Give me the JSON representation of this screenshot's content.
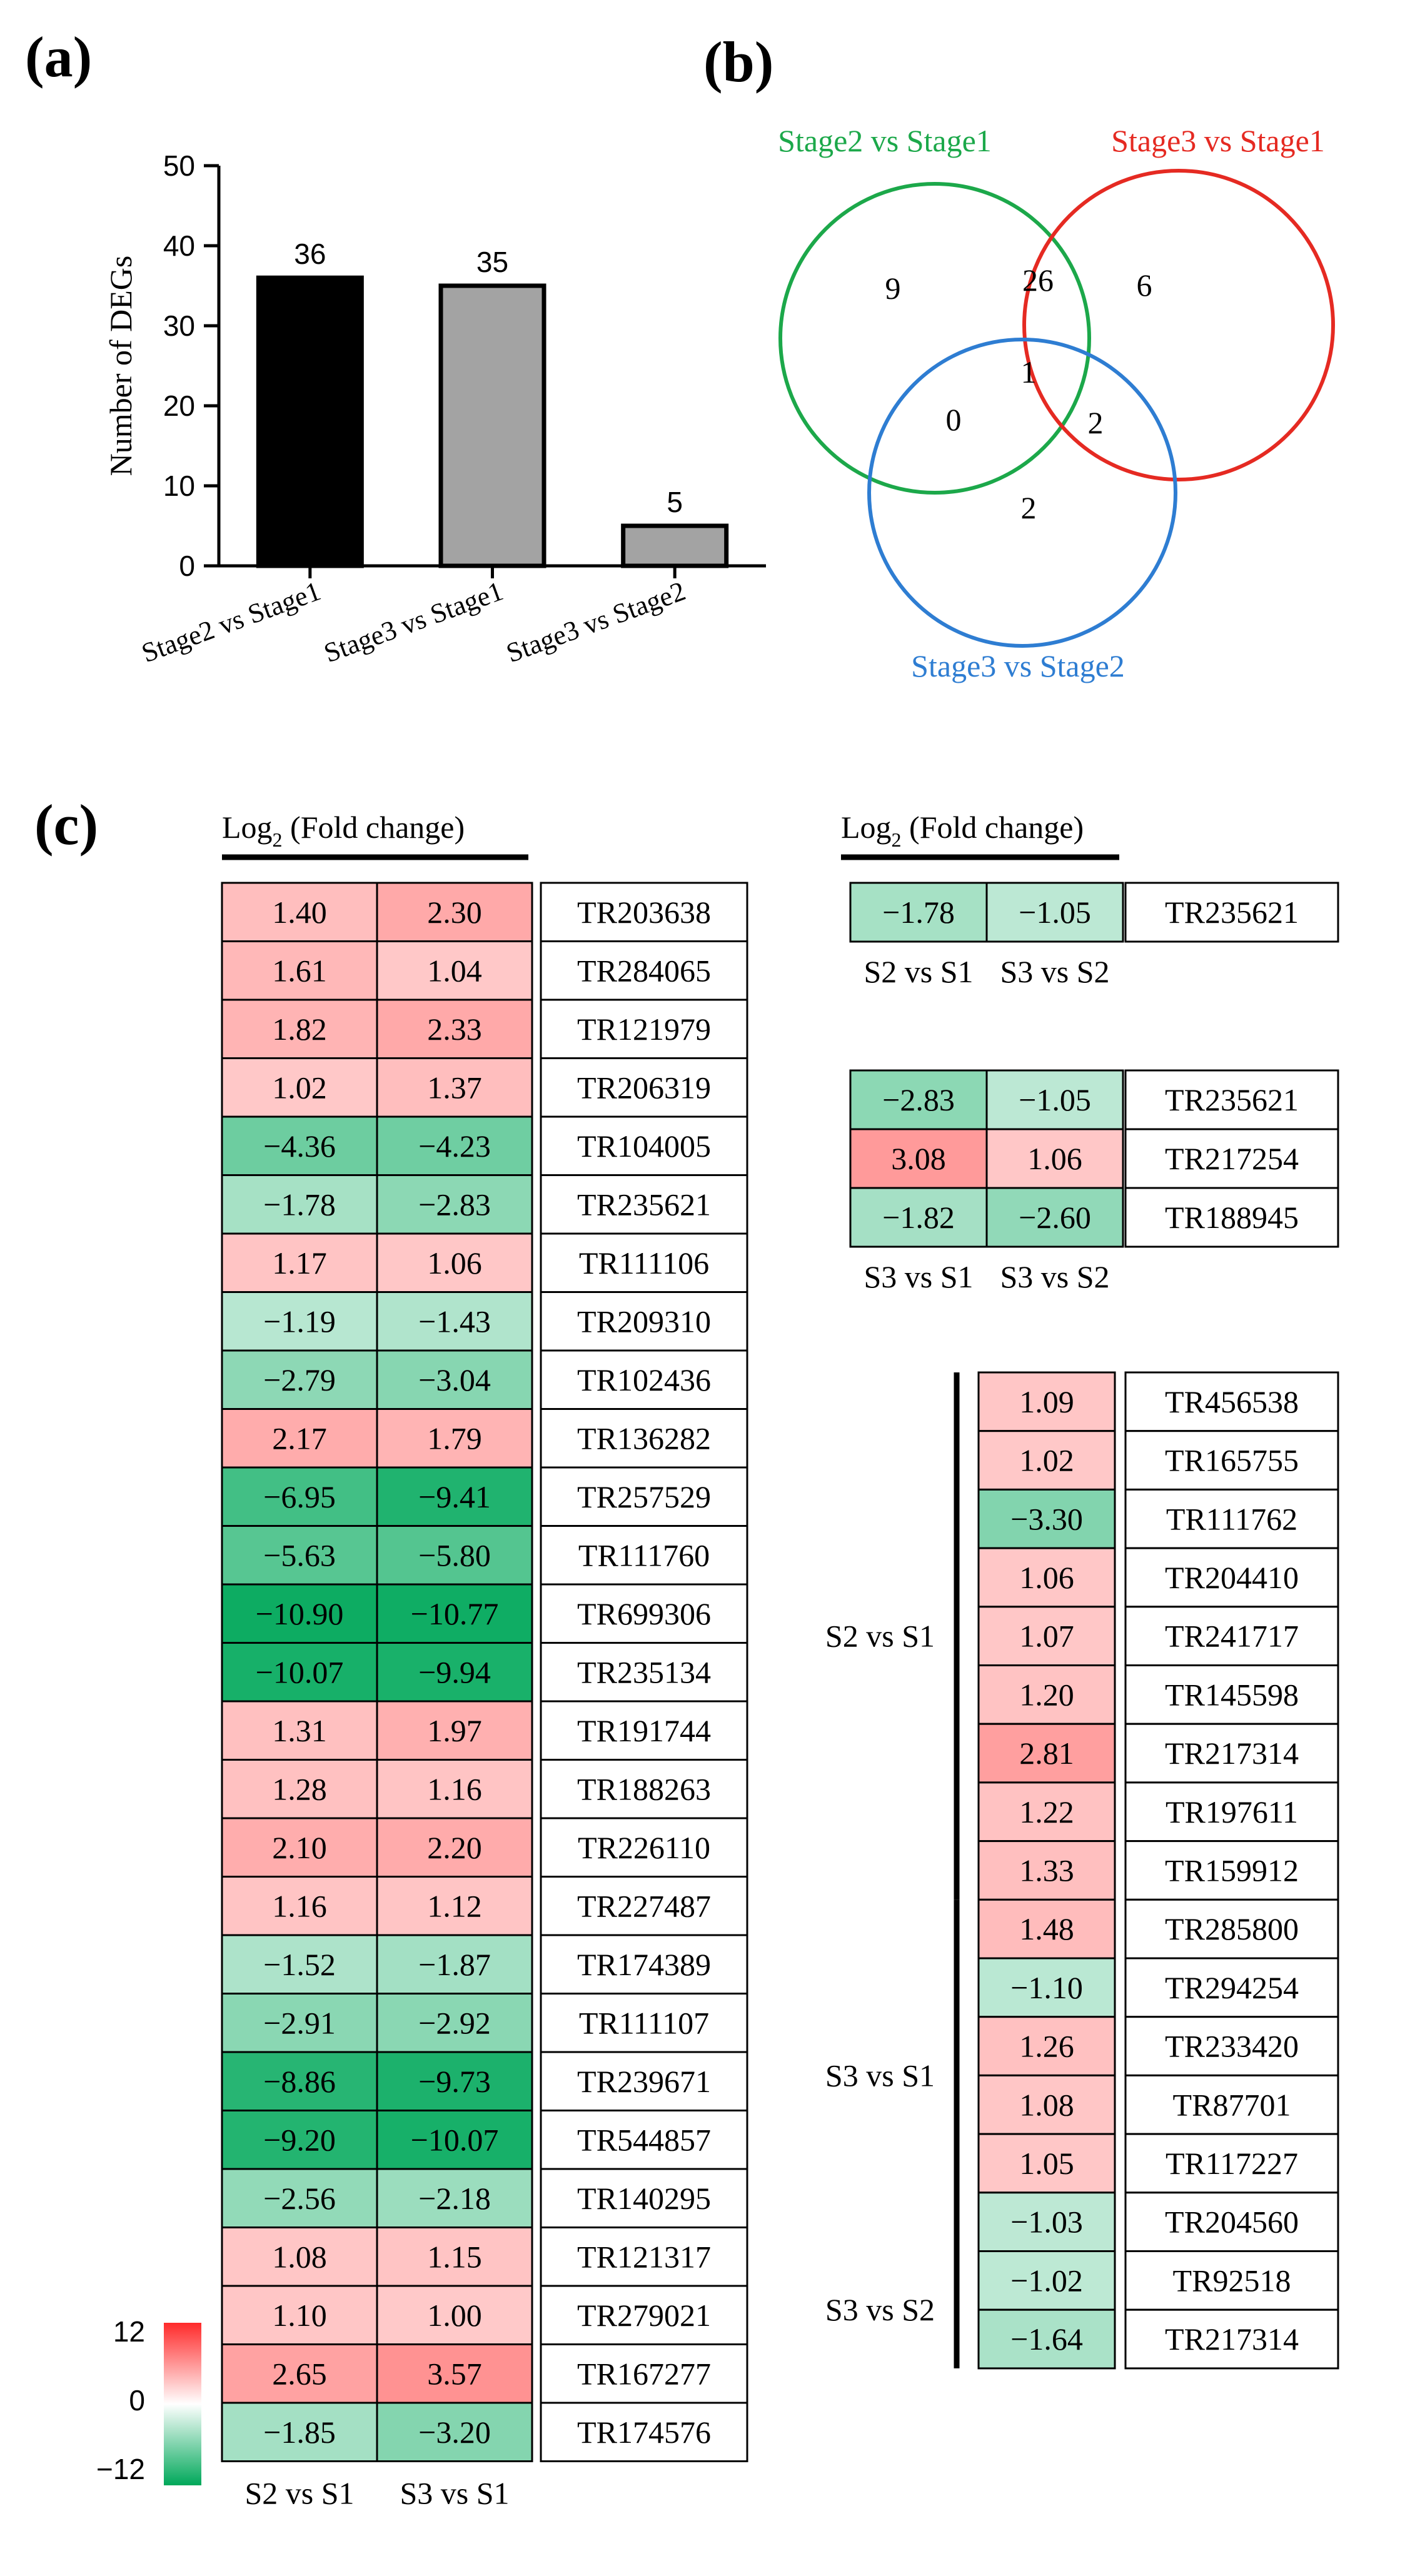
{
  "panel_labels": {
    "a": "(a)",
    "b": "(b)",
    "c": "(c)"
  },
  "chart_data": [
    {
      "panel": "a",
      "type": "bar",
      "ylabel": "Number of DEGs",
      "xlabel": "",
      "ylim": [
        0,
        50
      ],
      "yticks": [
        0,
        10,
        20,
        30,
        40,
        50
      ],
      "categories": [
        "Stage2 vs Stage1",
        "Stage3 vs Stage1",
        "Stage3 vs Stage2"
      ],
      "values": [
        36,
        35,
        5
      ],
      "data_labels": [
        "36",
        "35",
        "5"
      ],
      "colors": [
        "#000000",
        "#a3a3a3",
        "#a3a3a3"
      ],
      "grid": false
    },
    {
      "panel": "b",
      "type": "venn",
      "sets": [
        {
          "label": "Stage2 vs Stage1",
          "color": "#1ca84a"
        },
        {
          "label": "Stage3 vs Stage1",
          "color": "#e52a22"
        },
        {
          "label": "Stage3 vs Stage2",
          "color": "#2e7dd2"
        }
      ],
      "regions": [
        {
          "sets": [
            "Stage2 vs Stage1"
          ],
          "value": 9
        },
        {
          "sets": [
            "Stage2 vs Stage1",
            "Stage3 vs Stage1"
          ],
          "value": 26
        },
        {
          "sets": [
            "Stage3 vs Stage1"
          ],
          "value": 6
        },
        {
          "sets": [
            "Stage2 vs Stage1",
            "Stage3 vs Stage1",
            "Stage3 vs Stage2"
          ],
          "value": 1
        },
        {
          "sets": [
            "Stage2 vs Stage1",
            "Stage3 vs Stage2"
          ],
          "value": 0
        },
        {
          "sets": [
            "Stage3 vs Stage1",
            "Stage3 vs Stage2"
          ],
          "value": 2
        },
        {
          "sets": [
            "Stage3 vs Stage2"
          ],
          "value": 2
        }
      ]
    },
    {
      "panel": "c",
      "type": "heatmap",
      "title": "Log2 (Fold change)",
      "colorscale": {
        "min": -12,
        "max": 12,
        "low_color": "#00a85a",
        "mid_color": "#ffffff",
        "high_color": "#ff2a2a",
        "tick_labels": [
          "12",
          "0",
          "−12"
        ]
      },
      "blocks": [
        {
          "columns": [
            "S2 vs S1",
            "S3 vs S1"
          ],
          "rows": [
            {
              "id": "TR203638",
              "values": [
                1.4,
                2.3
              ],
              "labels": [
                "1.40",
                "2.30"
              ]
            },
            {
              "id": "TR284065",
              "values": [
                1.61,
                1.04
              ],
              "labels": [
                "1.61",
                "1.04"
              ]
            },
            {
              "id": "TR121979",
              "values": [
                1.82,
                2.33
              ],
              "labels": [
                "1.82",
                "2.33"
              ]
            },
            {
              "id": "TR206319",
              "values": [
                1.02,
                1.37
              ],
              "labels": [
                "1.02",
                "1.37"
              ]
            },
            {
              "id": "TR104005",
              "values": [
                -4.36,
                -4.23
              ],
              "labels": [
                "−4.36",
                "−4.23"
              ]
            },
            {
              "id": "TR235621",
              "values": [
                -1.78,
                -2.83
              ],
              "labels": [
                "−1.78",
                "−2.83"
              ]
            },
            {
              "id": "TR111106",
              "values": [
                1.17,
                1.06
              ],
              "labels": [
                "1.17",
                "1.06"
              ]
            },
            {
              "id": "TR209310",
              "values": [
                -1.19,
                -1.43
              ],
              "labels": [
                "−1.19",
                "−1.43"
              ]
            },
            {
              "id": "TR102436",
              "values": [
                -2.79,
                -3.04
              ],
              "labels": [
                "−2.79",
                "−3.04"
              ]
            },
            {
              "id": "TR136282",
              "values": [
                2.17,
                1.79
              ],
              "labels": [
                "2.17",
                "1.79"
              ]
            },
            {
              "id": "TR257529",
              "values": [
                -6.95,
                -9.41
              ],
              "labels": [
                "−6.95",
                "−9.41"
              ]
            },
            {
              "id": "TR111760",
              "values": [
                -5.63,
                -5.8
              ],
              "labels": [
                "−5.63",
                "−5.80"
              ]
            },
            {
              "id": "TR699306",
              "values": [
                -10.9,
                -10.77
              ],
              "labels": [
                "−10.90",
                "−10.77"
              ]
            },
            {
              "id": "TR235134",
              "values": [
                -10.07,
                -9.94
              ],
              "labels": [
                "−10.07",
                "−9.94"
              ]
            },
            {
              "id": "TR191744",
              "values": [
                1.31,
                1.97
              ],
              "labels": [
                "1.31",
                "1.97"
              ]
            },
            {
              "id": "TR188263",
              "values": [
                1.28,
                1.16
              ],
              "labels": [
                "1.28",
                "1.16"
              ]
            },
            {
              "id": "TR226110",
              "values": [
                2.1,
                2.2
              ],
              "labels": [
                "2.10",
                "2.20"
              ]
            },
            {
              "id": "TR227487",
              "values": [
                1.16,
                1.12
              ],
              "labels": [
                "1.16",
                "1.12"
              ]
            },
            {
              "id": "TR174389",
              "values": [
                -1.52,
                -1.87
              ],
              "labels": [
                "−1.52",
                "−1.87"
              ]
            },
            {
              "id": "TR111107",
              "values": [
                -2.91,
                -2.92
              ],
              "labels": [
                "−2.91",
                "−2.92"
              ]
            },
            {
              "id": "TR239671",
              "values": [
                -8.86,
                -9.73
              ],
              "labels": [
                "−8.86",
                "−9.73"
              ]
            },
            {
              "id": "TR544857",
              "values": [
                -9.2,
                -10.07
              ],
              "labels": [
                "−9.20",
                "−10.07"
              ]
            },
            {
              "id": "TR140295",
              "values": [
                -2.56,
                -2.18
              ],
              "labels": [
                "−2.56",
                "−2.18"
              ]
            },
            {
              "id": "TR121317",
              "values": [
                1.08,
                1.15
              ],
              "labels": [
                "1.08",
                "1.15"
              ]
            },
            {
              "id": "TR279021",
              "values": [
                1.1,
                1.0
              ],
              "labels": [
                "1.10",
                "1.00"
              ]
            },
            {
              "id": "TR167277",
              "values": [
                2.65,
                3.57
              ],
              "labels": [
                "2.65",
                "3.57"
              ]
            },
            {
              "id": "TR174576",
              "values": [
                -1.85,
                -3.2
              ],
              "labels": [
                "−1.85",
                "−3.20"
              ]
            }
          ]
        },
        {
          "columns": [
            "S2 vs S1",
            "S3 vs S2"
          ],
          "rows": [
            {
              "id": "TR235621",
              "values": [
                -1.78,
                -1.05
              ],
              "labels": [
                "−1.78",
                "−1.05"
              ]
            }
          ]
        },
        {
          "columns": [
            "S3 vs S1",
            "S3 vs S2"
          ],
          "rows": [
            {
              "id": "TR235621",
              "values": [
                -2.83,
                -1.05
              ],
              "labels": [
                "−2.83",
                "−1.05"
              ]
            },
            {
              "id": "TR217254",
              "values": [
                3.08,
                1.06
              ],
              "labels": [
                "3.08",
                "1.06"
              ]
            },
            {
              "id": "TR188945",
              "values": [
                -1.82,
                -2.6
              ],
              "labels": [
                "−1.82",
                "−2.60"
              ]
            }
          ]
        },
        {
          "columns": [],
          "groups": [
            {
              "label": "S2 vs S1",
              "rows": [
                {
                  "id": "TR456538",
                  "values": [
                    1.09
                  ],
                  "labels": [
                    "1.09"
                  ]
                },
                {
                  "id": "TR165755",
                  "values": [
                    1.02
                  ],
                  "labels": [
                    "1.02"
                  ]
                },
                {
                  "id": "TR111762",
                  "values": [
                    -3.3
                  ],
                  "labels": [
                    "−3.30"
                  ]
                },
                {
                  "id": "TR204410",
                  "values": [
                    1.06
                  ],
                  "labels": [
                    "1.06"
                  ]
                },
                {
                  "id": "TR241717",
                  "values": [
                    1.07
                  ],
                  "labels": [
                    "1.07"
                  ]
                },
                {
                  "id": "TR145598",
                  "values": [
                    1.2
                  ],
                  "labels": [
                    "1.20"
                  ]
                },
                {
                  "id": "TR217314",
                  "values": [
                    2.81
                  ],
                  "labels": [
                    "2.81"
                  ]
                },
                {
                  "id": "TR197611",
                  "values": [
                    1.22
                  ],
                  "labels": [
                    "1.22"
                  ]
                },
                {
                  "id": "TR159912",
                  "values": [
                    1.33
                  ],
                  "labels": [
                    "1.33"
                  ]
                }
              ]
            },
            {
              "label": "S3 vs S1",
              "rows": [
                {
                  "id": "TR285800",
                  "values": [
                    1.48
                  ],
                  "labels": [
                    "1.48"
                  ]
                },
                {
                  "id": "TR294254",
                  "values": [
                    -1.1
                  ],
                  "labels": [
                    "−1.10"
                  ]
                },
                {
                  "id": "TR233420",
                  "values": [
                    1.26
                  ],
                  "labels": [
                    "1.26"
                  ]
                },
                {
                  "id": "TR87701",
                  "values": [
                    1.08
                  ],
                  "labels": [
                    "1.08"
                  ]
                },
                {
                  "id": "TR117227",
                  "values": [
                    1.05
                  ],
                  "labels": [
                    "1.05"
                  ]
                },
                {
                  "id": "TR204560",
                  "values": [
                    -1.03
                  ],
                  "labels": [
                    "−1.03"
                  ]
                }
              ]
            },
            {
              "label": "S3 vs S2",
              "rows": [
                {
                  "id": "TR92518",
                  "values": [
                    -1.02
                  ],
                  "labels": [
                    "−1.02"
                  ]
                },
                {
                  "id": "TR217314",
                  "values": [
                    -1.64
                  ],
                  "labels": [
                    "−1.64"
                  ]
                }
              ]
            }
          ]
        }
      ]
    }
  ]
}
